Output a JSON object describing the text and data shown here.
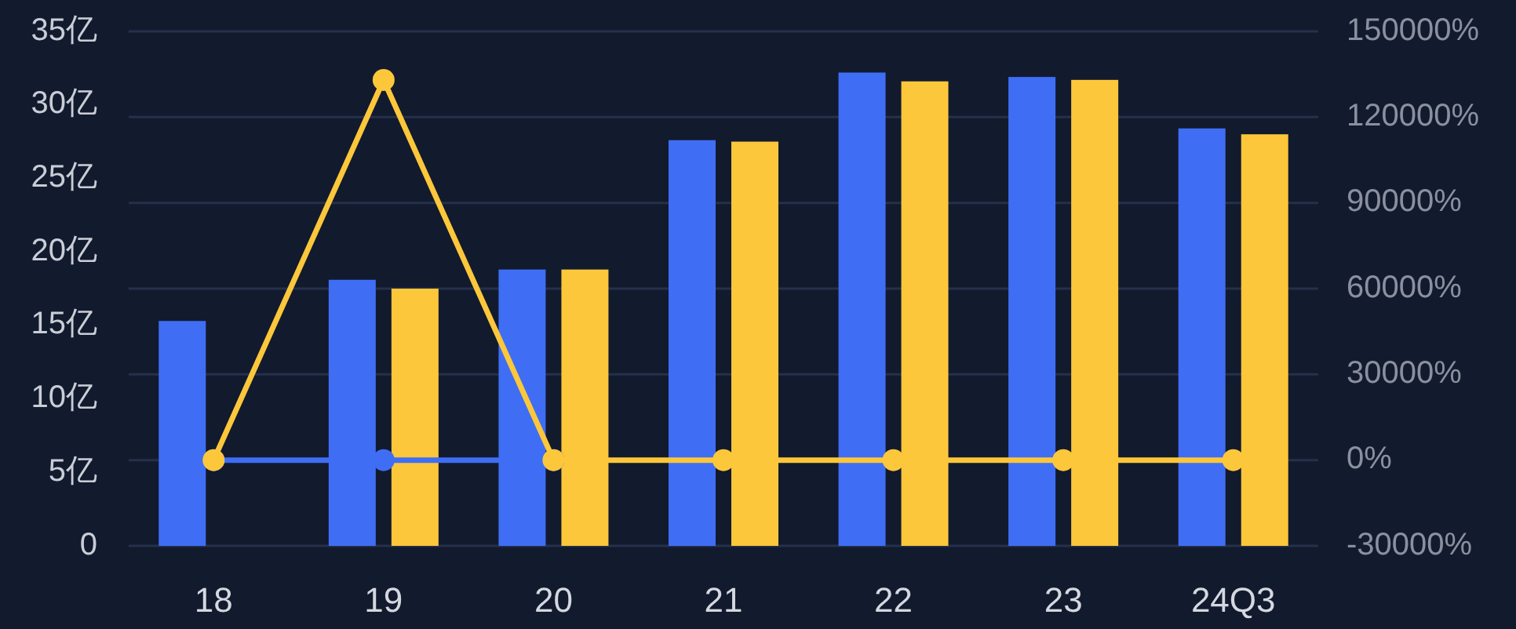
{
  "chart_data": {
    "type": "bar",
    "categories": [
      "18",
      "19",
      "20",
      "21",
      "22",
      "23",
      "24Q3"
    ],
    "series": [
      {
        "color": "#3f6ef5",
        "values": [
          15.3,
          18.1,
          18.8,
          27.6,
          32.2,
          31.9,
          28.4
        ]
      },
      {
        "color": "#fcc73a",
        "values": [
          0,
          17.5,
          18.8,
          27.5,
          31.6,
          31.7,
          28.0
        ]
      },
      {
        "type": "line",
        "axis": "y2",
        "color": "#3f6ef5",
        "values": [
          0,
          0,
          0,
          null,
          null,
          null,
          null
        ]
      },
      {
        "type": "line",
        "axis": "y2",
        "color": "#fcc73a",
        "values": [
          0,
          133000,
          0,
          0,
          0,
          0,
          0
        ]
      }
    ],
    "ylim": [
      0,
      35
    ],
    "yticks": [
      0,
      {
        "value": 5,
        "label": "5亿"
      },
      {
        "value": 10,
        "label": "10亿"
      },
      {
        "value": 15,
        "label": "15亿"
      },
      {
        "value": 20,
        "label": "20亿"
      },
      {
        "value": 25,
        "label": "25亿"
      },
      {
        "value": 30,
        "label": "30亿"
      },
      {
        "value": 35,
        "label": "35亿"
      }
    ],
    "y2lim": [
      -30000,
      150000
    ],
    "y2ticks": [
      {
        "value": -30000,
        "label": "-30000%"
      },
      {
        "value": 0,
        "label": "0%"
      },
      {
        "value": 30000,
        "label": "30000%"
      },
      {
        "value": 60000,
        "label": "60000%"
      },
      {
        "value": 90000,
        "label": "90000%"
      },
      {
        "value": 120000,
        "label": "120000%"
      },
      {
        "value": 150000,
        "label": "150000%"
      }
    ],
    "grid": true,
    "marker": "circle"
  }
}
